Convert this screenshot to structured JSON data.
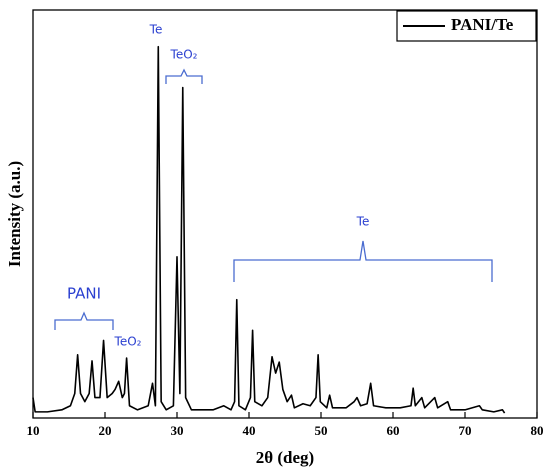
{
  "chart_data": {
    "type": "line",
    "x": [
      10,
      10.3,
      12,
      14,
      15.2,
      15.8,
      16.2,
      16.6,
      17.2,
      17.8,
      18.2,
      18.6,
      19.3,
      19.8,
      20.3,
      21.0,
      21.4,
      21.9,
      22.4,
      22.7,
      23.0,
      23.4,
      24.5,
      26.0,
      26.6,
      27.0,
      27.4,
      27.8,
      28.5,
      29.5,
      30.0,
      30.4,
      30.8,
      31.2,
      32,
      33,
      35,
      36.5,
      37.5,
      38.0,
      38.3,
      38.6,
      39.5,
      40.2,
      40.5,
      40.8,
      41.8,
      42.6,
      43.2,
      43.7,
      44.2,
      44.7,
      45.3,
      45.9,
      46.3,
      47.5,
      48.5,
      49.3,
      49.6,
      49.9,
      50.8,
      51.2,
      51.6,
      53.5,
      54.6,
      55.0,
      55.5,
      56.4,
      56.9,
      57.3,
      59,
      61,
      62.5,
      62.8,
      63.1,
      64.0,
      64.4,
      65.8,
      66.2,
      67.6,
      68,
      70,
      72,
      72.4,
      74,
      75.2,
      75.5
    ],
    "series": [
      {
        "name": "PANI/Te",
        "color": "#000000",
        "values": [
          5,
          1.5,
          1.5,
          2,
          3,
          6,
          15.5,
          6,
          4,
          6,
          14,
          5,
          5,
          19,
          5,
          6,
          7,
          9,
          5,
          6,
          14.7,
          3,
          2,
          3,
          8.5,
          3,
          91,
          4,
          2,
          3,
          39.5,
          6,
          81,
          5,
          2,
          2,
          2,
          3,
          2,
          4,
          29,
          3,
          2,
          5,
          21.5,
          4,
          3,
          5,
          15,
          11,
          13.7,
          7,
          4,
          5.6,
          2.5,
          3.5,
          3,
          5,
          15.5,
          4,
          2.5,
          5.6,
          2.5,
          2.5,
          4,
          5,
          3,
          3.5,
          8.5,
          3,
          2.5,
          2.5,
          3,
          7.3,
          3,
          5,
          2.5,
          5,
          2.5,
          4,
          2,
          2,
          3,
          2,
          1.5,
          2,
          1.2
        ]
      }
    ],
    "xlim": [
      10,
      80
    ],
    "xticks": [
      10,
      20,
      30,
      40,
      50,
      60,
      70,
      80
    ],
    "ylim": [
      0,
      100
    ],
    "xlabel": "2θ (deg)",
    "ylabel": "Intensity (a.u.)",
    "legend": "upper right",
    "annotations": [
      "Te",
      "TeO₂",
      "PANI",
      "TeO₂",
      "Te"
    ]
  }
}
